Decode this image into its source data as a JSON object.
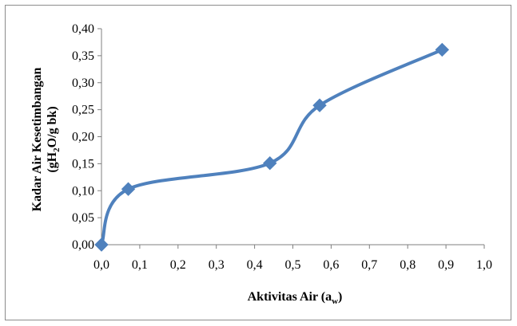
{
  "chart_data": {
    "type": "line",
    "smooth": true,
    "xlabel": "Aktivitas Air (a",
    "xlabel_sub": "w",
    "xlabel_end": ")",
    "ylabel_line1": "Kadar Air Kesetimbangan",
    "ylabel_line2": "(gH",
    "ylabel_line2_sub": "2",
    "ylabel_line2_end": "O/g bk)",
    "xlim": [
      0,
      1.0
    ],
    "ylim": [
      0,
      0.4
    ],
    "x_ticks": [
      "0,0",
      "0,1",
      "0,2",
      "0,3",
      "0,4",
      "0,5",
      "0,6",
      "0,7",
      "0,8",
      "0,9",
      "1,0"
    ],
    "y_ticks": [
      "0,00",
      "0,05",
      "0,10",
      "0,15",
      "0,20",
      "0,25",
      "0,30",
      "0,35",
      "0,40"
    ],
    "grid": false,
    "series_color": "#4f81bd",
    "series": [
      {
        "x": [
          0.0,
          0.07,
          0.44,
          0.57,
          0.89
        ],
        "y": [
          0.0,
          0.103,
          0.151,
          0.258,
          0.361
        ]
      }
    ]
  }
}
